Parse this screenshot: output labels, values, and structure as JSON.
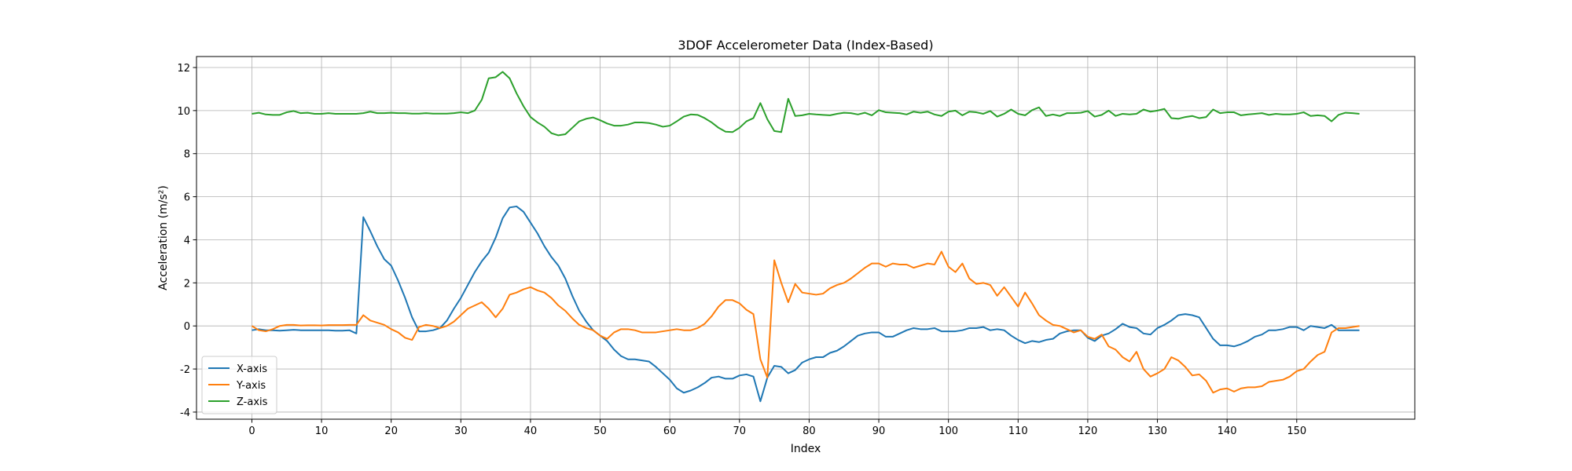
{
  "chart_data": {
    "type": "line",
    "title": "3DOF Accelerometer Data (Index-Based)",
    "x_label": "Index",
    "y_label": "Acceleration (m/s²)",
    "x": [
      0,
      1,
      2,
      3,
      4,
      5,
      6,
      7,
      8,
      9,
      10,
      11,
      12,
      13,
      14,
      15,
      16,
      17,
      18,
      19,
      20,
      21,
      22,
      23,
      24,
      25,
      26,
      27,
      28,
      29,
      30,
      31,
      32,
      33,
      34,
      35,
      36,
      37,
      38,
      39,
      40,
      41,
      42,
      43,
      44,
      45,
      46,
      47,
      48,
      49,
      50,
      51,
      52,
      53,
      54,
      55,
      56,
      57,
      58,
      59,
      60,
      61,
      62,
      63,
      64,
      65,
      66,
      67,
      68,
      69,
      70,
      71,
      72,
      73,
      74,
      75,
      76,
      77,
      78,
      79,
      80,
      81,
      82,
      83,
      84,
      85,
      86,
      87,
      88,
      89,
      90,
      91,
      92,
      93,
      94,
      95,
      96,
      97,
      98,
      99,
      100,
      101,
      102,
      103,
      104,
      105,
      106,
      107,
      108,
      109,
      110,
      111,
      112,
      113,
      114,
      115,
      116,
      117,
      118,
      119,
      120,
      121,
      122,
      123,
      124,
      125,
      126,
      127,
      128,
      129,
      130,
      131,
      132,
      133,
      134,
      135,
      136,
      137,
      138,
      139,
      140,
      141,
      142,
      143,
      144,
      145,
      146,
      147,
      148,
      149,
      150,
      151,
      152,
      153,
      154,
      155,
      156,
      157,
      158,
      159
    ],
    "series": [
      {
        "name": "X-axis",
        "color": "#1f77b4",
        "values": [
          -0.2,
          -0.15,
          -0.2,
          -0.2,
          -0.22,
          -0.2,
          -0.18,
          -0.2,
          -0.2,
          -0.2,
          -0.2,
          -0.2,
          -0.22,
          -0.22,
          -0.2,
          -0.35,
          5.05,
          4.4,
          3.7,
          3.1,
          2.8,
          2.1,
          1.3,
          0.4,
          -0.25,
          -0.25,
          -0.2,
          -0.1,
          0.25,
          0.8,
          1.3,
          1.9,
          2.5,
          3.0,
          3.4,
          4.1,
          5.0,
          5.5,
          5.55,
          5.3,
          4.8,
          4.3,
          3.7,
          3.2,
          2.8,
          2.2,
          1.4,
          0.7,
          0.2,
          -0.2,
          -0.45,
          -0.7,
          -1.1,
          -1.4,
          -1.55,
          -1.55,
          -1.6,
          -1.65,
          -1.9,
          -2.2,
          -2.5,
          -2.9,
          -3.1,
          -3.0,
          -2.85,
          -2.65,
          -2.4,
          -2.35,
          -2.45,
          -2.45,
          -2.3,
          -2.25,
          -2.35,
          -3.5,
          -2.4,
          -1.85,
          -1.9,
          -2.2,
          -2.05,
          -1.7,
          -1.55,
          -1.45,
          -1.45,
          -1.25,
          -1.15,
          -0.95,
          -0.7,
          -0.45,
          -0.35,
          -0.3,
          -0.3,
          -0.5,
          -0.5,
          -0.35,
          -0.2,
          -0.1,
          -0.15,
          -0.15,
          -0.1,
          -0.25,
          -0.25,
          -0.25,
          -0.2,
          -0.1,
          -0.1,
          -0.05,
          -0.2,
          -0.15,
          -0.2,
          -0.45,
          -0.65,
          -0.8,
          -0.7,
          -0.75,
          -0.65,
          -0.6,
          -0.35,
          -0.25,
          -0.2,
          -0.2,
          -0.55,
          -0.7,
          -0.45,
          -0.35,
          -0.15,
          0.1,
          -0.05,
          -0.1,
          -0.35,
          -0.4,
          -0.1,
          0.05,
          0.25,
          0.5,
          0.55,
          0.5,
          0.4,
          -0.1,
          -0.6,
          -0.9,
          -0.9,
          -0.95,
          -0.85,
          -0.7,
          -0.5,
          -0.4,
          -0.2,
          -0.2,
          -0.15,
          -0.05,
          -0.05,
          -0.2,
          0,
          -0.05,
          -0.1,
          0.05,
          -0.2,
          -0.2,
          -0.2,
          -0.2
        ]
      },
      {
        "name": "Y-axis",
        "color": "#ff7f0e",
        "values": [
          0,
          -0.2,
          -0.25,
          -0.15,
          0,
          0.05,
          0.05,
          0.02,
          0.03,
          0.03,
          0.02,
          0.04,
          0.04,
          0.04,
          0.05,
          0.05,
          0.5,
          0.25,
          0.15,
          0.05,
          -0.15,
          -0.3,
          -0.55,
          -0.65,
          -0.05,
          0.05,
          0,
          -0.1,
          0,
          0.2,
          0.5,
          0.8,
          0.95,
          1.1,
          0.8,
          0.4,
          0.8,
          1.45,
          1.55,
          1.7,
          1.8,
          1.65,
          1.55,
          1.3,
          0.95,
          0.7,
          0.35,
          0.05,
          -0.1,
          -0.2,
          -0.45,
          -0.6,
          -0.3,
          -0.15,
          -0.15,
          -0.2,
          -0.3,
          -0.3,
          -0.3,
          -0.25,
          -0.2,
          -0.15,
          -0.2,
          -0.2,
          -0.1,
          0.1,
          0.45,
          0.9,
          1.2,
          1.2,
          1.05,
          0.75,
          0.55,
          -1.55,
          -2.4,
          3.05,
          2.0,
          1.1,
          1.95,
          1.55,
          1.5,
          1.45,
          1.5,
          1.75,
          1.9,
          2.0,
          2.2,
          2.45,
          2.7,
          2.9,
          2.9,
          2.75,
          2.9,
          2.85,
          2.85,
          2.7,
          2.8,
          2.9,
          2.85,
          3.45,
          2.75,
          2.5,
          2.9,
          2.2,
          1.95,
          2.0,
          1.9,
          1.4,
          1.8,
          1.35,
          0.9,
          1.55,
          1.05,
          0.5,
          0.25,
          0.05,
          0.0,
          -0.15,
          -0.3,
          -0.2,
          -0.5,
          -0.6,
          -0.4,
          -0.95,
          -1.1,
          -1.45,
          -1.65,
          -1.2,
          -2.0,
          -2.35,
          -2.2,
          -2.0,
          -1.45,
          -1.6,
          -1.9,
          -2.3,
          -2.25,
          -2.55,
          -3.1,
          -2.95,
          -2.9,
          -3.05,
          -2.9,
          -2.85,
          -2.85,
          -2.8,
          -2.6,
          -2.55,
          -2.5,
          -2.35,
          -2.1,
          -2.0,
          -1.65,
          -1.35,
          -1.2,
          -0.3,
          -0.1,
          -0.1,
          -0.05,
          0
        ]
      },
      {
        "name": "Z-axis",
        "color": "#2ca02c",
        "values": [
          9.85,
          9.9,
          9.82,
          9.8,
          9.8,
          9.92,
          9.98,
          9.88,
          9.9,
          9.85,
          9.85,
          9.88,
          9.85,
          9.85,
          9.85,
          9.85,
          9.88,
          9.95,
          9.88,
          9.88,
          9.9,
          9.88,
          9.88,
          9.86,
          9.86,
          9.88,
          9.86,
          9.86,
          9.86,
          9.88,
          9.92,
          9.88,
          10.0,
          10.5,
          11.5,
          11.55,
          11.8,
          11.5,
          10.8,
          10.2,
          9.7,
          9.45,
          9.25,
          8.95,
          8.85,
          8.9,
          9.2,
          9.5,
          9.62,
          9.68,
          9.55,
          9.4,
          9.3,
          9.3,
          9.35,
          9.45,
          9.45,
          9.42,
          9.35,
          9.25,
          9.3,
          9.5,
          9.72,
          9.82,
          9.8,
          9.65,
          9.45,
          9.2,
          9.02,
          9.0,
          9.2,
          9.5,
          9.65,
          10.35,
          9.6,
          9.05,
          9.0,
          10.55,
          9.75,
          9.78,
          9.85,
          9.82,
          9.8,
          9.78,
          9.85,
          9.9,
          9.88,
          9.82,
          9.9,
          9.78,
          10.02,
          9.92,
          9.9,
          9.88,
          9.82,
          9.95,
          9.9,
          9.95,
          9.82,
          9.75,
          9.95,
          10.0,
          9.78,
          9.95,
          9.92,
          9.85,
          9.98,
          9.72,
          9.85,
          10.05,
          9.85,
          9.78,
          10.02,
          10.15,
          9.75,
          9.82,
          9.75,
          9.88,
          9.88,
          9.9,
          9.98,
          9.72,
          9.8,
          10.0,
          9.75,
          9.85,
          9.82,
          9.85,
          10.05,
          9.95,
          10.0,
          10.08,
          9.65,
          9.62,
          9.7,
          9.75,
          9.65,
          9.7,
          10.05,
          9.88,
          9.92,
          9.92,
          9.78,
          9.82,
          9.85,
          9.88,
          9.8,
          9.85,
          9.82,
          9.82,
          9.85,
          9.92,
          9.75,
          9.78,
          9.75,
          9.5,
          9.8,
          9.9,
          9.88,
          9.85
        ]
      }
    ],
    "xlim": [
      -7.95,
      166.95
    ],
    "ylim": [
      -4.33,
      12.51
    ],
    "xticks": [
      0,
      10,
      20,
      30,
      40,
      50,
      60,
      70,
      80,
      90,
      100,
      110,
      120,
      130,
      140,
      150
    ],
    "yticks": [
      -4,
      -2,
      0,
      2,
      4,
      6,
      8,
      10,
      12
    ],
    "grid": true,
    "legend": "lower left"
  }
}
